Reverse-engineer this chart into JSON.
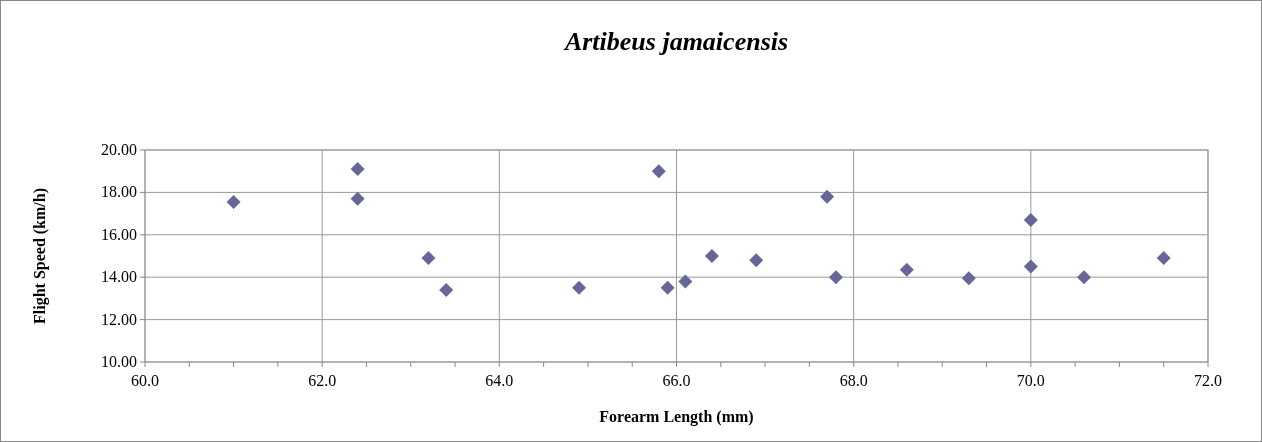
{
  "chart_data": {
    "type": "scatter",
    "title": "Artibeus jamaicensis",
    "xlabel": "Forearm Length (mm)",
    "ylabel": "Flight Speed (km/h)",
    "series": [
      {
        "color": "#666699",
        "x": [
          61.0,
          62.4,
          62.4,
          63.2,
          63.4,
          64.9,
          65.8,
          65.9,
          66.1,
          66.4,
          66.9,
          67.7,
          67.8,
          68.6,
          69.3,
          70.0,
          70.0,
          70.6,
          71.5
        ],
        "values": [
          17.55,
          19.1,
          17.7,
          14.9,
          13.4,
          13.5,
          19.0,
          13.5,
          13.8,
          15.0,
          14.8,
          17.8,
          14.0,
          14.35,
          13.95,
          16.7,
          14.5,
          14.0,
          14.9
        ]
      }
    ],
    "xlim": [
      60,
      72
    ],
    "ylim": [
      10,
      20
    ],
    "xticks": [
      {
        "value": 60,
        "label": "60.0"
      },
      {
        "value": 60.5,
        "label": null
      },
      {
        "value": 61,
        "label": null
      },
      {
        "value": 61.5,
        "label": null
      },
      {
        "value": 62,
        "label": "62.0"
      },
      {
        "value": 62.5,
        "label": null
      },
      {
        "value": 63,
        "label": null
      },
      {
        "value": 63.5,
        "label": null
      },
      {
        "value": 64,
        "label": "64.0"
      },
      {
        "value": 64.5,
        "label": null
      },
      {
        "value": 65,
        "label": null
      },
      {
        "value": 65.5,
        "label": null
      },
      {
        "value": 66,
        "label": "66.0"
      },
      {
        "value": 66.5,
        "label": null
      },
      {
        "value": 67,
        "label": null
      },
      {
        "value": 67.5,
        "label": null
      },
      {
        "value": 68,
        "label": "68.0"
      },
      {
        "value": 68.5,
        "label": null
      },
      {
        "value": 69,
        "label": null
      },
      {
        "value": 69.5,
        "label": null
      },
      {
        "value": 70,
        "label": "70.0"
      },
      {
        "value": 70.5,
        "label": null
      },
      {
        "value": 71,
        "label": null
      },
      {
        "value": 71.5,
        "label": null
      },
      {
        "value": 72,
        "label": "72.0"
      }
    ],
    "yticks": [
      {
        "value": 10,
        "label": "10.00"
      },
      {
        "value": 12,
        "label": "12.00"
      },
      {
        "value": 14,
        "label": "14.00"
      },
      {
        "value": 16,
        "label": "16.00"
      },
      {
        "value": 18,
        "label": "18.00"
      },
      {
        "value": 20,
        "label": "20.00"
      }
    ],
    "grid": true,
    "marker": "diamond"
  }
}
